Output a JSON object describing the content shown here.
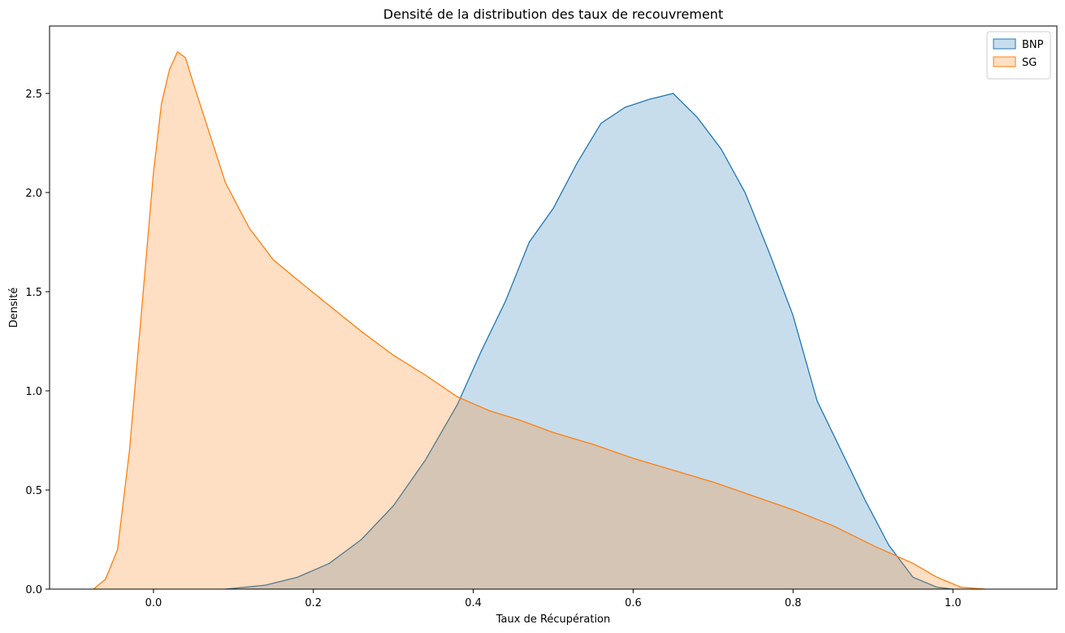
{
  "chart_data": {
    "type": "area",
    "title": "Densité de la distribution des taux de recouvrement",
    "xlabel": "Taux de Récupération",
    "ylabel": "Densité",
    "xlim": [
      -0.13,
      1.13
    ],
    "ylim": [
      0,
      2.84
    ],
    "xticks": [
      0.0,
      0.2,
      0.4,
      0.6,
      0.8,
      1.0
    ],
    "xtick_labels": [
      "0.0",
      "0.2",
      "0.4",
      "0.6",
      "0.8",
      "1.0"
    ],
    "yticks": [
      0.0,
      0.5,
      1.0,
      1.5,
      2.0,
      2.5
    ],
    "ytick_labels": [
      "0.0",
      "0.5",
      "1.0",
      "1.5",
      "2.0",
      "2.5"
    ],
    "grid": false,
    "legend_position": "top-right",
    "series": [
      {
        "name": "BNP",
        "color": "#1f77b4",
        "fill": "#1f77b4",
        "x": [
          0.09,
          0.14,
          0.18,
          0.22,
          0.26,
          0.3,
          0.34,
          0.38,
          0.41,
          0.44,
          0.47,
          0.5,
          0.53,
          0.56,
          0.59,
          0.62,
          0.65,
          0.68,
          0.71,
          0.74,
          0.77,
          0.8,
          0.83,
          0.86,
          0.89,
          0.92,
          0.95,
          0.98,
          1.0
        ],
        "y": [
          0.0,
          0.02,
          0.06,
          0.13,
          0.25,
          0.42,
          0.65,
          0.93,
          1.2,
          1.45,
          1.75,
          1.92,
          2.15,
          2.35,
          2.43,
          2.47,
          2.5,
          2.38,
          2.22,
          2.0,
          1.7,
          1.38,
          0.95,
          0.7,
          0.45,
          0.22,
          0.06,
          0.01,
          0.0
        ]
      },
      {
        "name": "SG",
        "color": "#ff7f0e",
        "fill": "#ff7f0e",
        "x": [
          -0.075,
          -0.06,
          -0.045,
          -0.03,
          -0.015,
          0.0,
          0.01,
          0.02,
          0.03,
          0.04,
          0.05,
          0.07,
          0.09,
          0.12,
          0.15,
          0.18,
          0.22,
          0.26,
          0.3,
          0.34,
          0.38,
          0.42,
          0.46,
          0.5,
          0.55,
          0.6,
          0.65,
          0.7,
          0.75,
          0.8,
          0.85,
          0.9,
          0.95,
          0.98,
          1.01,
          1.04
        ],
        "y": [
          0.0,
          0.05,
          0.2,
          0.7,
          1.4,
          2.1,
          2.45,
          2.62,
          2.71,
          2.68,
          2.55,
          2.3,
          2.05,
          1.82,
          1.66,
          1.56,
          1.43,
          1.3,
          1.18,
          1.08,
          0.97,
          0.9,
          0.85,
          0.79,
          0.73,
          0.66,
          0.6,
          0.54,
          0.47,
          0.4,
          0.32,
          0.22,
          0.13,
          0.06,
          0.01,
          0.0
        ]
      }
    ]
  }
}
